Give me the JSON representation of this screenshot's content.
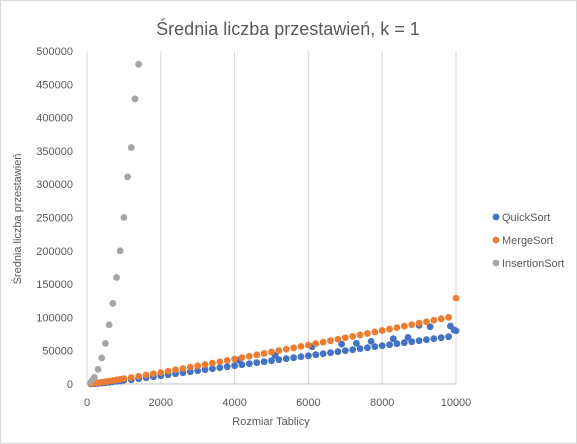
{
  "chart_data": {
    "type": "scatter",
    "title": "Średnia liczba przestawień, k = 1",
    "xlabel": "Rozmiar Tablicy",
    "ylabel": "Średnia liczba przestawień",
    "xlim": [
      0,
      10000
    ],
    "ylim": [
      0,
      500000
    ],
    "x_ticks": [
      "0",
      "2000",
      "4000",
      "6000",
      "8000",
      "10000"
    ],
    "y_ticks": [
      "0",
      "50000",
      "100000",
      "150000",
      "200000",
      "250000",
      "300000",
      "350000",
      "400000",
      "450000",
      "500000"
    ],
    "grid": "vertical",
    "legend_position": "right",
    "series": [
      {
        "name": "QuickSort",
        "color": "#4472C4",
        "points": [
          [
            100,
            70
          ],
          [
            200,
            300
          ],
          [
            300,
            750
          ],
          [
            400,
            1300
          ],
          [
            500,
            1900
          ],
          [
            600,
            2500
          ],
          [
            700,
            3200
          ],
          [
            800,
            3900
          ],
          [
            900,
            4600
          ],
          [
            1000,
            5400
          ],
          [
            1200,
            6500
          ],
          [
            1400,
            8000
          ],
          [
            1600,
            9500
          ],
          [
            1800,
            11000
          ],
          [
            2000,
            12500
          ],
          [
            2200,
            14000
          ],
          [
            2400,
            15500
          ],
          [
            2600,
            17000
          ],
          [
            2800,
            18500
          ],
          [
            3000,
            20000
          ],
          [
            3200,
            21500
          ],
          [
            3400,
            23000
          ],
          [
            3600,
            24500
          ],
          [
            3800,
            26000
          ],
          [
            4000,
            27500
          ],
          [
            4200,
            29000
          ],
          [
            4400,
            30500
          ],
          [
            4600,
            32000
          ],
          [
            4800,
            33500
          ],
          [
            5000,
            35000
          ],
          [
            5200,
            36500
          ],
          [
            5400,
            38000
          ],
          [
            5600,
            39500
          ],
          [
            5800,
            41000
          ],
          [
            6000,
            42500
          ],
          [
            6200,
            44000
          ],
          [
            6400,
            45500
          ],
          [
            6600,
            47000
          ],
          [
            6800,
            48500
          ],
          [
            7000,
            50000
          ],
          [
            7200,
            51500
          ],
          [
            7400,
            53000
          ],
          [
            7600,
            54500
          ],
          [
            7800,
            56000
          ],
          [
            8000,
            57500
          ],
          [
            8200,
            59000
          ],
          [
            8400,
            60500
          ],
          [
            8600,
            62000
          ],
          [
            8800,
            63500
          ],
          [
            9000,
            65000
          ],
          [
            9200,
            66500
          ],
          [
            9400,
            68000
          ],
          [
            9600,
            69500
          ],
          [
            9800,
            71000
          ],
          [
            10000,
            80000
          ],
          [
            4100,
            36000
          ],
          [
            5100,
            43000
          ],
          [
            6100,
            56000
          ],
          [
            6900,
            60000
          ],
          [
            7700,
            64000
          ],
          [
            8300,
            68000
          ],
          [
            9000,
            88000
          ],
          [
            9300,
            86000
          ],
          [
            9850,
            87000
          ],
          [
            9950,
            81000
          ],
          [
            8700,
            70000
          ],
          [
            7300,
            61000
          ]
        ]
      },
      {
        "name": "MergeSort",
        "color": "#ED7D31",
        "points": [
          [
            100,
            450
          ],
          [
            200,
            1100
          ],
          [
            300,
            1900
          ],
          [
            400,
            2600
          ],
          [
            500,
            3400
          ],
          [
            600,
            4300
          ],
          [
            700,
            5200
          ],
          [
            800,
            6100
          ],
          [
            900,
            7000
          ],
          [
            1000,
            8000
          ],
          [
            1200,
            9700
          ],
          [
            1400,
            11600
          ],
          [
            1600,
            13500
          ],
          [
            1800,
            15400
          ],
          [
            2000,
            17300
          ],
          [
            2200,
            19300
          ],
          [
            2400,
            21300
          ],
          [
            2600,
            23300
          ],
          [
            2800,
            25300
          ],
          [
            3000,
            27300
          ],
          [
            3200,
            29300
          ],
          [
            3400,
            31300
          ],
          [
            3600,
            33400
          ],
          [
            3800,
            35400
          ],
          [
            4000,
            37500
          ],
          [
            4200,
            39600
          ],
          [
            4400,
            41700
          ],
          [
            4600,
            43800
          ],
          [
            4800,
            45900
          ],
          [
            5000,
            48000
          ],
          [
            5200,
            50100
          ],
          [
            5400,
            52200
          ],
          [
            5600,
            54300
          ],
          [
            5800,
            56500
          ],
          [
            6000,
            58600
          ],
          [
            6200,
            60700
          ],
          [
            6400,
            62900
          ],
          [
            6600,
            65000
          ],
          [
            6800,
            67200
          ],
          [
            7000,
            69400
          ],
          [
            7200,
            71500
          ],
          [
            7400,
            73700
          ],
          [
            7600,
            75900
          ],
          [
            7800,
            78100
          ],
          [
            8000,
            80300
          ],
          [
            8200,
            82500
          ],
          [
            8400,
            84700
          ],
          [
            8600,
            86900
          ],
          [
            8800,
            89100
          ],
          [
            9000,
            91300
          ],
          [
            9200,
            93500
          ],
          [
            9400,
            95700
          ],
          [
            9600,
            97900
          ],
          [
            9800,
            100100
          ],
          [
            10000,
            129000
          ]
        ]
      },
      {
        "name": "InsertionSort",
        "color": "#A5A5A5",
        "points": [
          [
            100,
            2500
          ],
          [
            150,
            6000
          ],
          [
            200,
            10000
          ],
          [
            300,
            22000
          ],
          [
            400,
            39000
          ],
          [
            500,
            61000
          ],
          [
            600,
            89000
          ],
          [
            700,
            121000
          ],
          [
            800,
            160000
          ],
          [
            900,
            200000
          ],
          [
            1000,
            250000
          ],
          [
            1100,
            311000
          ],
          [
            1200,
            355000
          ],
          [
            1300,
            428000
          ],
          [
            1400,
            480000
          ]
        ]
      }
    ]
  }
}
